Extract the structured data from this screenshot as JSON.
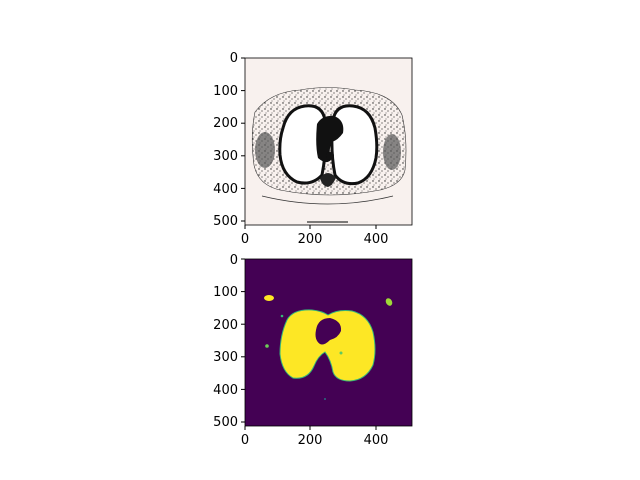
{
  "figure": {
    "panels": [
      {
        "name": "ct-slice",
        "image": "grayscale axial chest CT slice with lungs appearing white",
        "colors": {
          "background": "#f8f1ee",
          "tissue": "#111111",
          "lung": "#ffffff"
        },
        "x_ticks": [
          "0",
          "200",
          "400"
        ],
        "y_ticks": [
          "0",
          "100",
          "200",
          "300",
          "400",
          "500"
        ]
      },
      {
        "name": "lung-mask",
        "image": "segmentation mask in viridis colormap, lungs yellow on dark purple",
        "colors": {
          "background": "#440154",
          "mask": "#fde725",
          "edge": "#35b779"
        },
        "x_ticks": [
          "0",
          "200",
          "400"
        ],
        "y_ticks": [
          "0",
          "100",
          "200",
          "300",
          "400",
          "500"
        ]
      }
    ]
  }
}
